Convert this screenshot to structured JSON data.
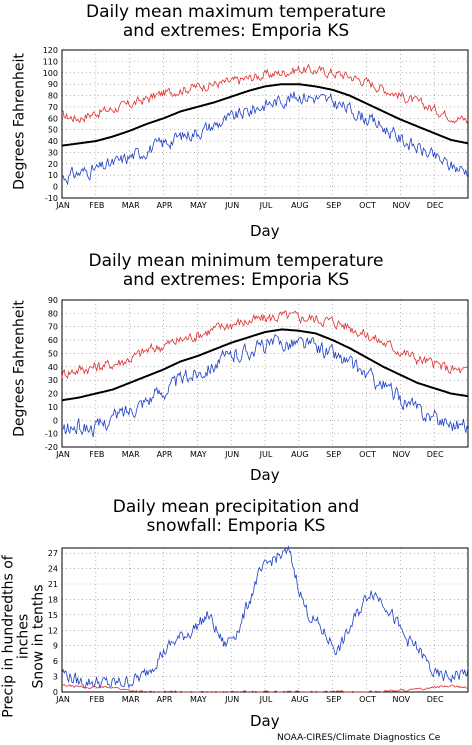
{
  "credit": "NOAA-CIRES/Climate Diagnostics Ce",
  "colors": {
    "record": "#e03030",
    "low": "#2040c8",
    "mean": "#000000",
    "grid": "#888888"
  },
  "chart_data": [
    {
      "type": "line",
      "title": "Daily mean maximum temperature\nand extremes: Emporia KS",
      "xlabel": "Day",
      "ylabel": "Degrees Fahrenheit",
      "ylim": [
        -10,
        120
      ],
      "yticks": [
        -10,
        0,
        10,
        20,
        30,
        40,
        50,
        60,
        70,
        80,
        90,
        100,
        110,
        120
      ],
      "months": [
        "JAN",
        "FEB",
        "MAR",
        "APR",
        "MAY",
        "JUN",
        "JUL",
        "AUG",
        "SEP",
        "OCT",
        "NOV",
        "DEC"
      ],
      "grid": true,
      "series": [
        {
          "role": "high",
          "color": "#e03030",
          "values": [
            62,
            60,
            65,
            68,
            72,
            77,
            82,
            85,
            88,
            90,
            92,
            95,
            98,
            100,
            103,
            102,
            100,
            97,
            92,
            86,
            80,
            74,
            68,
            62,
            58
          ]
        },
        {
          "role": "mean",
          "color": "#000000",
          "values": [
            36,
            38,
            40,
            44,
            49,
            55,
            60,
            66,
            70,
            74,
            79,
            84,
            88,
            90,
            90,
            88,
            85,
            80,
            73,
            66,
            59,
            53,
            47,
            41,
            38
          ]
        },
        {
          "role": "low",
          "color": "#2040c8",
          "values": [
            8,
            12,
            15,
            20,
            26,
            32,
            38,
            44,
            48,
            54,
            60,
            66,
            72,
            76,
            80,
            78,
            74,
            68,
            60,
            52,
            42,
            34,
            26,
            18,
            14
          ]
        }
      ]
    },
    {
      "type": "line",
      "title": "Daily mean minimum temperature\nand extremes: Emporia KS",
      "xlabel": "Day",
      "ylabel": "Degrees Fahrenheit",
      "ylim": [
        -20,
        90
      ],
      "yticks": [
        -20,
        -10,
        0,
        10,
        20,
        30,
        40,
        50,
        60,
        70,
        80,
        90
      ],
      "months": [
        "JAN",
        "FEB",
        "MAR",
        "APR",
        "MAY",
        "JUN",
        "JUL",
        "AUG",
        "SEP",
        "OCT",
        "NOV",
        "DEC"
      ],
      "grid": true,
      "series": [
        {
          "role": "high",
          "color": "#e03030",
          "values": [
            35,
            38,
            40,
            42,
            46,
            52,
            56,
            60,
            64,
            68,
            72,
            74,
            76,
            78,
            77,
            76,
            74,
            70,
            64,
            58,
            52,
            46,
            42,
            38,
            36
          ]
        },
        {
          "role": "mean",
          "color": "#000000",
          "values": [
            15,
            17,
            20,
            23,
            28,
            33,
            38,
            44,
            48,
            53,
            58,
            62,
            66,
            68,
            67,
            65,
            60,
            54,
            47,
            40,
            34,
            28,
            24,
            20,
            18
          ]
        },
        {
          "role": "low",
          "color": "#2040c8",
          "values": [
            -8,
            -5,
            -6,
            2,
            8,
            16,
            22,
            30,
            36,
            42,
            48,
            52,
            56,
            58,
            58,
            55,
            50,
            42,
            34,
            26,
            16,
            8,
            2,
            -2,
            -4
          ]
        }
      ]
    },
    {
      "type": "line",
      "title": "Daily mean precipitation and\nsnowfall: Emporia KS",
      "xlabel": "Day",
      "ylabel": "Precip in hundredths of inches\nSnow in tenths",
      "ylim": [
        0,
        28
      ],
      "yticks": [
        0,
        3,
        6,
        9,
        12,
        15,
        18,
        21,
        24,
        27
      ],
      "months": [
        "JAN",
        "FEB",
        "MAR",
        "APR",
        "MAY",
        "JUN",
        "JUL",
        "AUG",
        "SEP",
        "OCT",
        "NOV",
        "DEC"
      ],
      "grid": true,
      "series": [
        {
          "role": "precip",
          "color": "#2040c8",
          "values": [
            4,
            2,
            2,
            1.5,
            2,
            3,
            7,
            10,
            12,
            15,
            9,
            13,
            22,
            26,
            27,
            16,
            12,
            8,
            14,
            20,
            17,
            11,
            8,
            3,
            3,
            4
          ]
        },
        {
          "role": "snow",
          "color": "#e03030",
          "values": [
            1.3,
            1,
            0.8,
            1,
            0.4,
            0,
            0,
            0,
            0,
            0,
            0,
            0,
            0,
            0,
            0,
            0,
            0,
            0,
            0,
            0,
            0.2,
            0.3,
            0.5,
            1,
            1.2,
            0.8
          ]
        }
      ]
    }
  ]
}
